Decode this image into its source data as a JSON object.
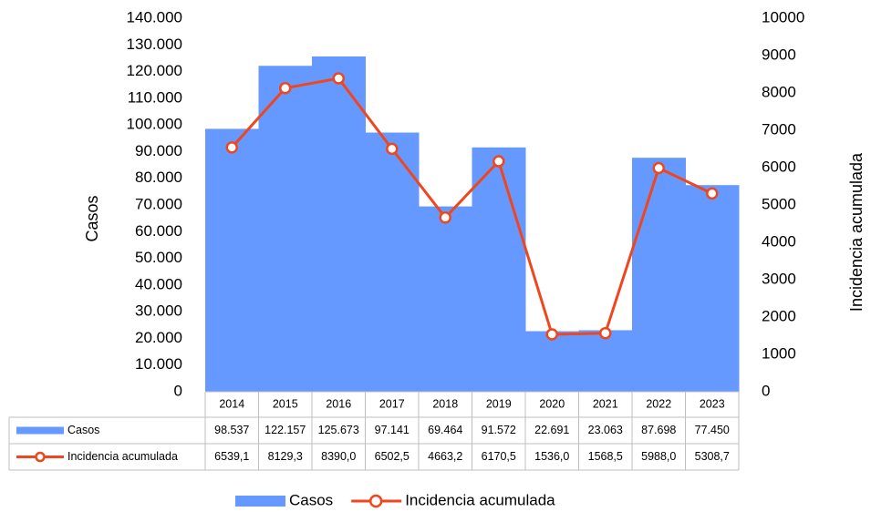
{
  "chart_data": {
    "type": "bar",
    "categories": [
      "2014",
      "2015",
      "2016",
      "2017",
      "2018",
      "2019",
      "2020",
      "2021",
      "2022",
      "2023"
    ],
    "ylabel": "Casos",
    "y2label": "Incidencia acumulada",
    "series": [
      {
        "name": "Casos",
        "type": "bar",
        "color": "#6699ff",
        "values": [
          98537,
          122157,
          125673,
          97141,
          69464,
          91572,
          22691,
          23063,
          87698,
          77450
        ],
        "value_labels": [
          "98.537",
          "122.157",
          "125.673",
          "97.141",
          "69.464",
          "91.572",
          "22.691",
          "23.063",
          "87.698",
          "77.450"
        ]
      },
      {
        "name": "Incidencia acumulada",
        "type": "line",
        "axis": "y2",
        "color": "#f0461e",
        "values": [
          6539.1,
          8129.3,
          8390.0,
          6502.5,
          4663.2,
          6170.5,
          1536.0,
          1568.5,
          5988.0,
          5308.7
        ],
        "value_labels": [
          "6539,1",
          "8129,3",
          "8390,0",
          "6502,5",
          "4663,2",
          "6170,5",
          "1536,0",
          "1568,5",
          "5988,0",
          "5308,7"
        ]
      }
    ],
    "ylim": [
      0,
      140000
    ],
    "yticks": [
      0,
      {
        "value": 10000,
        "label": "10.000"
      },
      {
        "value": 20000,
        "label": "20.000"
      },
      {
        "value": 30000,
        "label": "30.000"
      },
      {
        "value": 40000,
        "label": "40.000"
      },
      {
        "value": 50000,
        "label": "50.000"
      },
      {
        "value": 60000,
        "label": "60.000"
      },
      {
        "value": 70000,
        "label": "70.000"
      },
      {
        "value": 80000,
        "label": "80.000"
      },
      {
        "value": 90000,
        "label": "90.000"
      },
      {
        "value": 100000,
        "label": "100.000"
      },
      {
        "value": 110000,
        "label": "110.000"
      },
      {
        "value": 120000,
        "label": "120.000"
      },
      {
        "value": 130000,
        "label": "130.000"
      },
      {
        "value": 140000,
        "label": "140.000"
      }
    ],
    "y2lim": [
      0,
      10000
    ],
    "y2ticks": [
      0,
      1000,
      2000,
      3000,
      4000,
      5000,
      6000,
      7000,
      8000,
      9000,
      10000
    ],
    "legend": "bottom",
    "grid": false
  }
}
